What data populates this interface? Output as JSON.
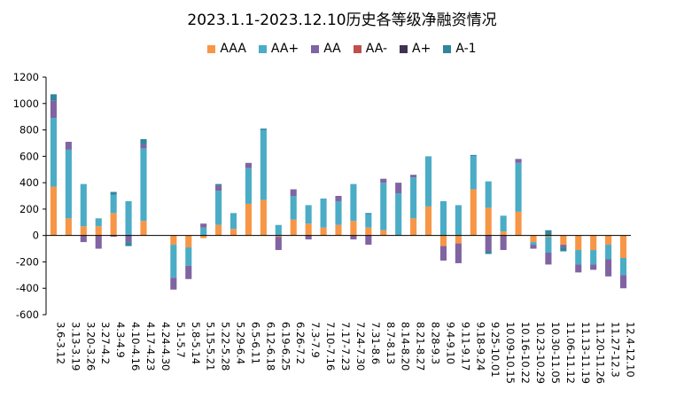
{
  "colors": {
    "AAA": "#F79646",
    "AA+": "#4BACC6",
    "AA": "#8064A2",
    "AA-": "#C0504D",
    "A+": "#403152",
    "A-1": "#31859C"
  },
  "chart_data": {
    "type": "bar",
    "stacked": true,
    "title": "2023.1.1-2023.12.10历史各等级净融资情况",
    "xlabel": "",
    "ylabel": "",
    "ylim": [
      -600,
      1200
    ],
    "yticks": [
      -600,
      -400,
      -200,
      0,
      200,
      400,
      600,
      800,
      1000,
      1200
    ],
    "legend_position": "top",
    "grid": false,
    "categories": [
      "3.6-3.12",
      "3.13-3.19",
      "3.20-3.26",
      "3.27-4.2",
      "4.3-4.9",
      "4.10-4.16",
      "4.17-4.23",
      "4.24-4.30",
      "5.1-5.7",
      "5.8-5.14",
      "5.15-5.21",
      "5.22-5.28",
      "5.29-6.4",
      "6.5-6.11",
      "6.12-6.18",
      "6.19-6.25",
      "6.26-7.2",
      "7.3-7.9",
      "7.10-7.16",
      "7.17-7.23",
      "7.24-7.30",
      "7.31-8.6",
      "8.7-8.13",
      "8.14-8.20",
      "8.21-8.27",
      "8.28-9.3",
      "9.4-9.10",
      "9.11-9.17",
      "9.18-9.24",
      "9.25-10.01",
      "10.09-10.15",
      "10.16-10.22",
      "10.23-10.29",
      "10.30-11.05",
      "11.06-11.12",
      "11.13-11.19",
      "11.20-11.26",
      "11.27-12.3",
      "12.4-12.10"
    ],
    "series": [
      {
        "name": "AAA",
        "values": [
          370,
          130,
          70,
          70,
          170,
          0,
          110,
          0,
          -70,
          -90,
          -20,
          80,
          50,
          240,
          270,
          -10,
          120,
          90,
          60,
          80,
          110,
          60,
          40,
          0,
          130,
          220,
          -80,
          -60,
          350,
          210,
          30,
          180,
          -50,
          -10,
          -70,
          -110,
          -110,
          -70,
          -170
        ]
      },
      {
        "name": "AA+",
        "values": [
          520,
          520,
          320,
          60,
          140,
          260,
          550,
          0,
          -250,
          -140,
          60,
          260,
          120,
          270,
          530,
          80,
          180,
          140,
          220,
          180,
          280,
          100,
          360,
          320,
          310,
          380,
          260,
          230,
          250,
          200,
          120,
          370,
          -20,
          -120,
          0,
          -110,
          -110,
          -110,
          -130
        ]
      },
      {
        "name": "AA",
        "values": [
          130,
          60,
          -50,
          -100,
          -10,
          -50,
          30,
          0,
          -90,
          -100,
          30,
          40,
          0,
          40,
          0,
          -100,
          50,
          -30,
          0,
          40,
          -30,
          -70,
          30,
          80,
          20,
          0,
          -110,
          -150,
          0,
          -120,
          -110,
          30,
          -30,
          -90,
          -20,
          -60,
          -40,
          -130,
          -100
        ]
      },
      {
        "name": "AA-",
        "values": [
          0,
          0,
          0,
          0,
          0,
          0,
          0,
          0,
          0,
          0,
          0,
          0,
          0,
          0,
          0,
          0,
          0,
          0,
          0,
          0,
          0,
          0,
          0,
          0,
          0,
          0,
          0,
          0,
          0,
          0,
          0,
          0,
          0,
          0,
          0,
          0,
          0,
          0,
          0
        ]
      },
      {
        "name": "A+",
        "values": [
          0,
          0,
          0,
          0,
          0,
          0,
          0,
          0,
          0,
          0,
          0,
          0,
          0,
          0,
          0,
          0,
          0,
          0,
          0,
          0,
          0,
          0,
          0,
          0,
          0,
          0,
          0,
          0,
          0,
          0,
          0,
          0,
          0,
          0,
          0,
          0,
          0,
          0,
          0
        ]
      },
      {
        "name": "A-1",
        "values": [
          50,
          0,
          0,
          0,
          20,
          -30,
          40,
          0,
          0,
          0,
          0,
          10,
          0,
          0,
          10,
          0,
          0,
          0,
          0,
          0,
          0,
          10,
          0,
          0,
          0,
          0,
          0,
          0,
          10,
          -20,
          0,
          0,
          0,
          40,
          -30,
          0,
          0,
          0,
          0
        ]
      }
    ]
  }
}
